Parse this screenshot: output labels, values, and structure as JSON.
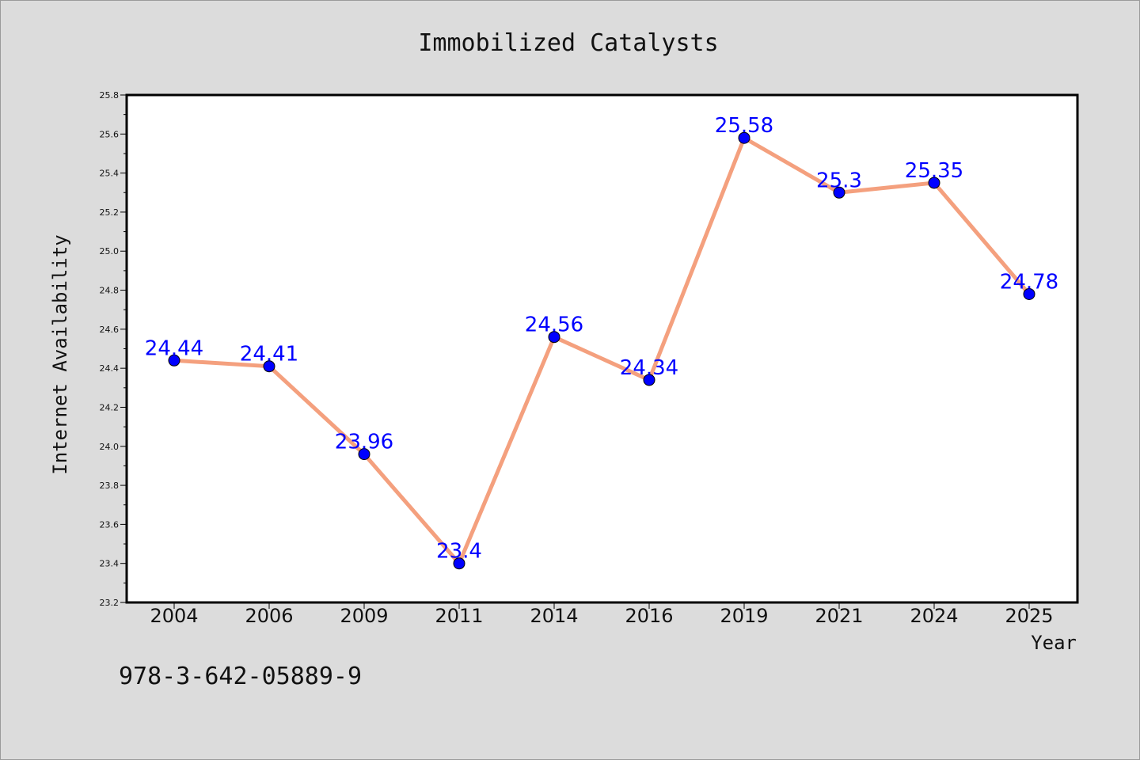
{
  "chart_data": {
    "type": "line",
    "title": "Immobilized Catalysts",
    "xlabel": "Year",
    "ylabel": "Internet Availability",
    "categories": [
      "2004",
      "2006",
      "2009",
      "2011",
      "2014",
      "2016",
      "2019",
      "2021",
      "2024",
      "2025"
    ],
    "values": [
      24.44,
      24.41,
      23.96,
      23.4,
      24.56,
      24.34,
      25.58,
      25.3,
      25.35,
      24.78
    ],
    "data_labels": [
      "24.44",
      "24.41",
      "23.96",
      "23.4",
      "24.56",
      "24.34",
      "25.58",
      "25.3",
      "25.35",
      "24.78"
    ],
    "ylim": [
      23.2,
      25.8
    ],
    "yticks": [
      "23.2",
      "23.4",
      "23.6",
      "23.8",
      "24.0",
      "24.2",
      "24.4",
      "24.6",
      "24.8",
      "25.0",
      "25.2",
      "25.4",
      "25.6",
      "25.8"
    ],
    "grid": false,
    "legend": "none",
    "colors": {
      "line": "#f4a07e",
      "marker": "#0000ff",
      "label": "#0000ff",
      "background": "#dcdcdc",
      "plot": "#ffffff"
    }
  },
  "footer": {
    "text": "978-3-642-05889-9"
  }
}
